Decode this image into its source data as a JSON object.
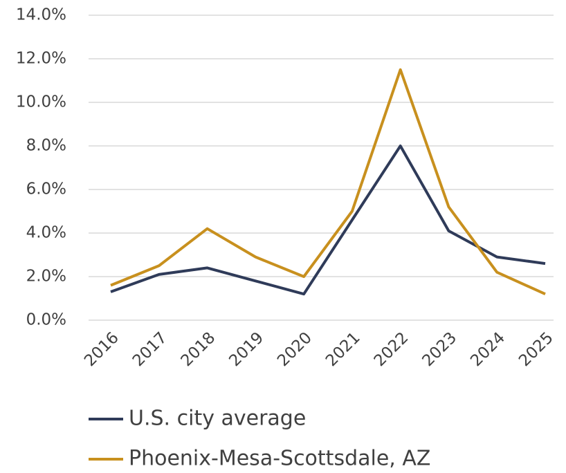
{
  "chart_data": {
    "type": "line",
    "categories": [
      "2016",
      "2017",
      "2018",
      "2019",
      "2020",
      "2021",
      "2022",
      "2023",
      "2024",
      "2025"
    ],
    "series": [
      {
        "name": "U.S. city average",
        "color": "#2f3b59",
        "values": [
          1.3,
          2.1,
          2.4,
          1.8,
          1.2,
          4.6,
          8.0,
          4.1,
          2.9,
          2.6
        ]
      },
      {
        "name": "Phoenix-Mesa-Scottsdale, AZ",
        "color": "#c8901e",
        "values": [
          1.6,
          2.5,
          4.2,
          2.9,
          2.0,
          5.0,
          11.5,
          5.2,
          2.2,
          1.2
        ]
      }
    ],
    "ylim": [
      0,
      14
    ],
    "yticks": [
      {
        "value": 0,
        "label": "0.0%"
      },
      {
        "value": 2,
        "label": "2.0%"
      },
      {
        "value": 4,
        "label": "4.0%"
      },
      {
        "value": 6,
        "label": "6.0%"
      },
      {
        "value": 8,
        "label": "8.0%"
      },
      {
        "value": 10,
        "label": "10.0%"
      },
      {
        "value": 12,
        "label": "12.0%"
      },
      {
        "value": 14,
        "label": "14.0%"
      }
    ],
    "grid": true,
    "legend": "bottom"
  }
}
